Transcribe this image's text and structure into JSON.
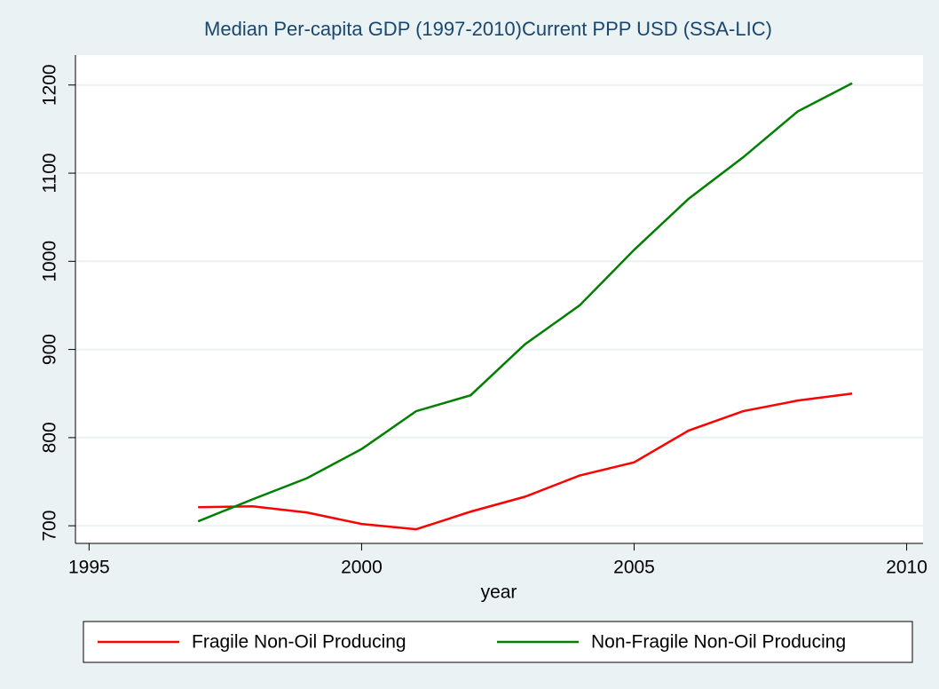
{
  "chart_data": {
    "type": "line",
    "title": "Median Per-capita GDP (1997-2010)Current PPP USD (SSA-LIC)",
    "x_label": "year",
    "x": [
      1997,
      1998,
      1999,
      2000,
      2001,
      2002,
      2003,
      2004,
      2005,
      2006,
      2007,
      2008,
      2009
    ],
    "series": [
      {
        "name": "Fragile Non-Oil Producing",
        "color": "#ff0000",
        "values": [
          721,
          722,
          715,
          702,
          696,
          716,
          733,
          757,
          772,
          808,
          830,
          842,
          850
        ]
      },
      {
        "name": "Non-Fragile Non-Oil Producing",
        "color": "#008000",
        "values": [
          705,
          730,
          754,
          787,
          830,
          848,
          906,
          950,
          1013,
          1071,
          1118,
          1170,
          1202
        ]
      }
    ],
    "xlim": [
      1994.75,
      2010.3
    ],
    "xticks": [
      1995,
      2000,
      2005,
      2010
    ],
    "ylim": [
      680,
      1234
    ],
    "yticks": [
      700,
      800,
      900,
      1000,
      1100,
      1200
    ],
    "grid": true,
    "legend": "bottom"
  }
}
